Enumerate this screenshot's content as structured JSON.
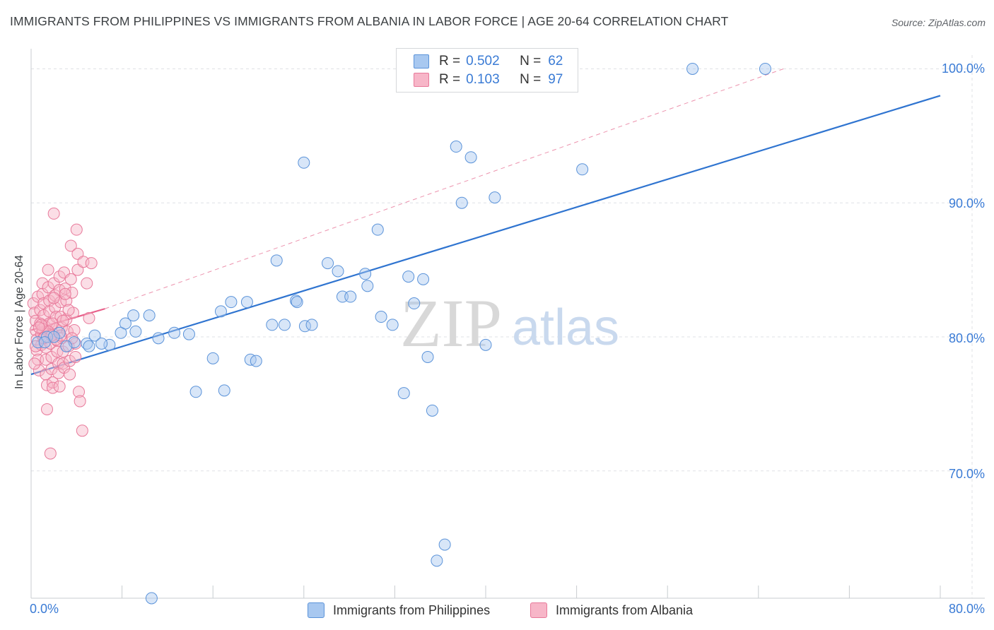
{
  "title": "IMMIGRANTS FROM PHILIPPINES VS IMMIGRANTS FROM ALBANIA IN LABOR FORCE | AGE 20-64 CORRELATION CHART",
  "source": "Source: ZipAtlas.com",
  "watermark": {
    "zip": "ZIP",
    "atlas": "atlas"
  },
  "legend": {
    "r_label": "R =",
    "n_label": "N =",
    "philippines": {
      "r": "0.502",
      "n": "62"
    },
    "albania": {
      "r": "0.103",
      "n": "97"
    }
  },
  "colors": {
    "philippines_fill": "#a8c8f0",
    "philippines_stroke": "#5b93d9",
    "philippines_line": "#2f74d0",
    "albania_fill": "#f7b6c8",
    "albania_stroke": "#e8799a",
    "albania_line": "#e8608a",
    "tick_text": "#3a7bd5"
  },
  "chart_data": {
    "type": "scatter",
    "title": "IMMIGRANTS FROM PHILIPPINES VS IMMIGRANTS FROM ALBANIA IN LABOR FORCE | AGE 20-64 CORRELATION CHART",
    "xlabel": "",
    "ylabel": "In Labor Force | Age 20-64",
    "xlim": [
      0,
      80
    ],
    "ylim": [
      60.5,
      101.5
    ],
    "x_tick_labels": [
      "0.0%",
      "80.0%"
    ],
    "y_ticks": [
      70,
      80,
      90,
      100
    ],
    "y_tick_labels": [
      "70.0%",
      "80.0%",
      "90.0%",
      "100.0%"
    ],
    "grid": true,
    "series": [
      {
        "name": "Immigrants from Philippines",
        "r": 0.502,
        "n": 62,
        "trend": {
          "x0": 0,
          "y0": 77.2,
          "x1": 80,
          "y1": 98.0
        },
        "points": [
          [
            0.6,
            79.6
          ],
          [
            1.4,
            80.0
          ],
          [
            2.5,
            80.3
          ],
          [
            3.8,
            79.6
          ],
          [
            4.9,
            79.5
          ],
          [
            5.6,
            80.1
          ],
          [
            6.9,
            79.4
          ],
          [
            7.9,
            80.3
          ],
          [
            8.3,
            81.0
          ],
          [
            9.2,
            80.4
          ],
          [
            9.0,
            81.6
          ],
          [
            10.4,
            81.6
          ],
          [
            11.2,
            79.9
          ],
          [
            12.6,
            80.3
          ],
          [
            13.9,
            80.2
          ],
          [
            14.5,
            75.9
          ],
          [
            16.0,
            78.4
          ],
          [
            16.7,
            81.9
          ],
          [
            17.6,
            82.6
          ],
          [
            17.0,
            76.0
          ],
          [
            19.0,
            82.6
          ],
          [
            19.3,
            78.3
          ],
          [
            19.8,
            78.2
          ],
          [
            21.2,
            80.9
          ],
          [
            21.6,
            85.7
          ],
          [
            22.3,
            80.9
          ],
          [
            23.3,
            82.7
          ],
          [
            23.4,
            82.6
          ],
          [
            24.0,
            93.0
          ],
          [
            24.1,
            80.8
          ],
          [
            24.7,
            80.9
          ],
          [
            26.1,
            85.5
          ],
          [
            27.0,
            84.9
          ],
          [
            27.4,
            83.0
          ],
          [
            28.1,
            83.0
          ],
          [
            29.4,
            84.7
          ],
          [
            29.6,
            83.8
          ],
          [
            30.5,
            88.0
          ],
          [
            30.8,
            81.5
          ],
          [
            31.8,
            80.9
          ],
          [
            32.8,
            75.8
          ],
          [
            33.2,
            84.5
          ],
          [
            33.7,
            82.5
          ],
          [
            34.5,
            84.3
          ],
          [
            34.9,
            78.5
          ],
          [
            35.3,
            74.5
          ],
          [
            35.7,
            63.3
          ],
          [
            36.4,
            64.5
          ],
          [
            37.4,
            94.2
          ],
          [
            37.9,
            90.0
          ],
          [
            38.7,
            93.4
          ],
          [
            40.0,
            79.4
          ],
          [
            40.8,
            90.4
          ],
          [
            48.5,
            92.5
          ],
          [
            58.2,
            100.0
          ],
          [
            64.6,
            100.0
          ],
          [
            10.6,
            60.5
          ],
          [
            5.1,
            79.3
          ],
          [
            6.2,
            79.5
          ],
          [
            2.0,
            80.0
          ],
          [
            1.2,
            79.6
          ],
          [
            3.1,
            79.3
          ]
        ]
      },
      {
        "name": "Immigrants from Albania",
        "r": 0.103,
        "n": 97,
        "trend": {
          "x0": 0,
          "y0": 80.5,
          "x1": 6.5,
          "y1": 82.1
        },
        "trend_dashed": {
          "x0": 6.5,
          "y0": 82.1,
          "x1": 66.2,
          "y1": 100.0
        },
        "points": [
          [
            0.2,
            82.5
          ],
          [
            0.3,
            81.8
          ],
          [
            0.4,
            81.2
          ],
          [
            0.4,
            80.5
          ],
          [
            0.5,
            79.8
          ],
          [
            0.5,
            79.0
          ],
          [
            0.6,
            78.3
          ],
          [
            0.7,
            77.5
          ],
          [
            0.6,
            83.0
          ],
          [
            0.8,
            82.0
          ],
          [
            0.8,
            81.0
          ],
          [
            0.9,
            80.2
          ],
          [
            0.9,
            79.4
          ],
          [
            1.0,
            84.0
          ],
          [
            1.0,
            83.2
          ],
          [
            1.1,
            82.5
          ],
          [
            1.1,
            81.6
          ],
          [
            1.2,
            80.8
          ],
          [
            1.2,
            80.0
          ],
          [
            1.3,
            79.2
          ],
          [
            1.3,
            78.3
          ],
          [
            1.3,
            77.2
          ],
          [
            1.4,
            76.4
          ],
          [
            1.4,
            74.6
          ],
          [
            1.5,
            85.0
          ],
          [
            1.5,
            83.7
          ],
          [
            1.6,
            82.7
          ],
          [
            1.6,
            81.9
          ],
          [
            1.6,
            81.0
          ],
          [
            1.7,
            80.2
          ],
          [
            1.7,
            79.5
          ],
          [
            1.8,
            78.5
          ],
          [
            1.8,
            77.6
          ],
          [
            1.9,
            76.6
          ],
          [
            1.9,
            76.2
          ],
          [
            2.0,
            89.2
          ],
          [
            2.0,
            84.0
          ],
          [
            2.1,
            83.1
          ],
          [
            2.1,
            82.2
          ],
          [
            2.2,
            81.5
          ],
          [
            2.2,
            80.6
          ],
          [
            2.3,
            79.7
          ],
          [
            2.3,
            78.9
          ],
          [
            2.4,
            78.0
          ],
          [
            2.4,
            77.3
          ],
          [
            2.5,
            84.5
          ],
          [
            2.5,
            83.5
          ],
          [
            2.6,
            82.6
          ],
          [
            2.6,
            81.5
          ],
          [
            2.7,
            80.7
          ],
          [
            2.7,
            79.9
          ],
          [
            2.8,
            78.9
          ],
          [
            2.8,
            78.0
          ],
          [
            2.9,
            77.7
          ],
          [
            2.9,
            84.8
          ],
          [
            3.0,
            83.6
          ],
          [
            3.1,
            82.7
          ],
          [
            3.1,
            81.3
          ],
          [
            3.2,
            80.4
          ],
          [
            3.3,
            79.3
          ],
          [
            3.4,
            78.2
          ],
          [
            3.4,
            77.2
          ],
          [
            3.5,
            86.8
          ],
          [
            3.5,
            84.3
          ],
          [
            3.6,
            83.3
          ],
          [
            3.7,
            81.8
          ],
          [
            3.8,
            80.5
          ],
          [
            3.9,
            79.5
          ],
          [
            3.9,
            78.5
          ],
          [
            4.0,
            88.0
          ],
          [
            4.1,
            86.2
          ],
          [
            4.1,
            85.0
          ],
          [
            4.2,
            75.9
          ],
          [
            4.3,
            75.2
          ],
          [
            4.5,
            73.0
          ],
          [
            4.6,
            85.6
          ],
          [
            4.9,
            84.0
          ],
          [
            5.1,
            81.4
          ],
          [
            5.3,
            85.5
          ],
          [
            1.7,
            71.3
          ],
          [
            1.0,
            80.6
          ],
          [
            0.4,
            79.3
          ],
          [
            2.2,
            79.8
          ],
          [
            2.6,
            80.1
          ],
          [
            1.9,
            81.0
          ],
          [
            1.5,
            80.4
          ],
          [
            0.9,
            80.9
          ],
          [
            2.8,
            81.2
          ],
          [
            3.6,
            79.9
          ],
          [
            1.1,
            79.9
          ],
          [
            0.7,
            80.7
          ],
          [
            3.3,
            82.0
          ],
          [
            2.0,
            82.9
          ],
          [
            0.3,
            78.0
          ],
          [
            2.5,
            76.3
          ],
          [
            1.8,
            80.1
          ],
          [
            3.0,
            83.2
          ]
        ]
      }
    ]
  }
}
